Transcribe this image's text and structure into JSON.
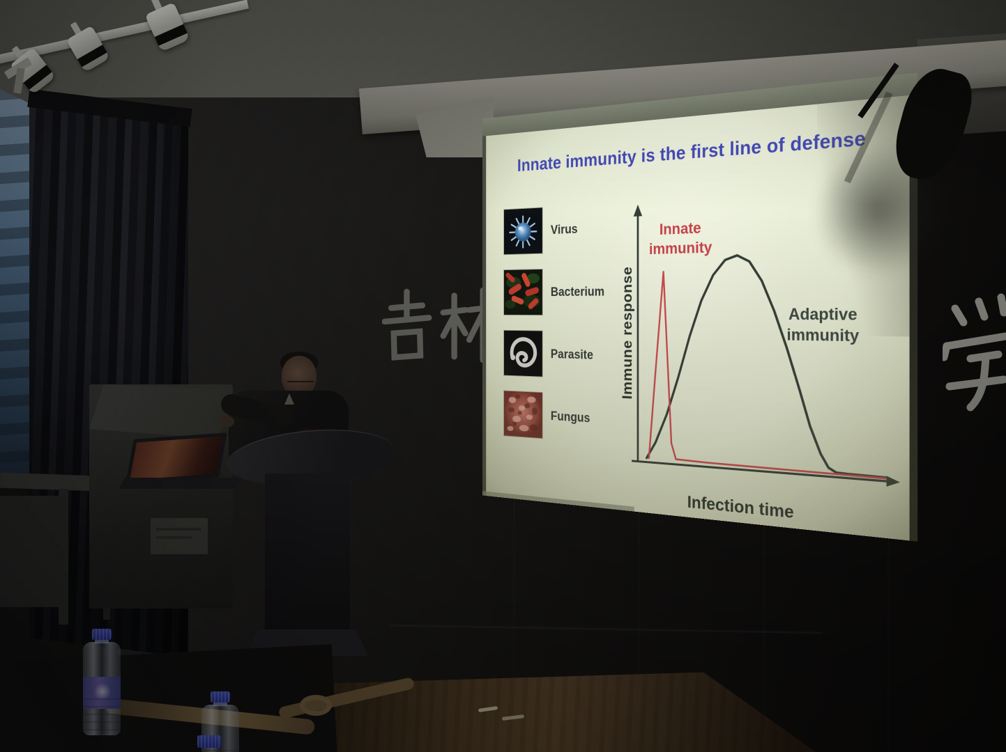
{
  "slide": {
    "title": "Innate immunity is the first line of defense",
    "pathogens": [
      {
        "label": "Virus"
      },
      {
        "label": "Bacterium"
      },
      {
        "label": "Parasite"
      },
      {
        "label": "Fungus"
      }
    ],
    "chart": {
      "y_axis_label": "Immune response",
      "x_axis_label": "Infection time",
      "innate_label": "Innate\nimmunity",
      "adaptive_label": "Adaptive\nimmunity"
    },
    "colors": {
      "title_blue": "#3f45b5",
      "innate_red": "#c9424b",
      "adaptive_dark": "#333d36",
      "slide_background": "#e9eed8"
    }
  },
  "wall_signage": {
    "characters": "吉林",
    "partial_character": "学"
  },
  "chart_data": {
    "type": "line",
    "title": "Innate immunity is the first line of defense",
    "xlabel": "Infection time",
    "ylabel": "Immune response",
    "x_range_normalized": [
      0,
      1
    ],
    "y_range_normalized": [
      0,
      1
    ],
    "grid": false,
    "legend_position": "inline-annotations",
    "series": [
      {
        "name": "Innate immunity",
        "color": "#cd4a50",
        "x": [
          0.05,
          0.08,
          0.115,
          0.15,
          0.17,
          0.3,
          0.6,
          1.0
        ],
        "y": [
          0.02,
          0.45,
          0.93,
          0.1,
          0.025,
          0.02,
          0.016,
          0.012
        ]
      },
      {
        "name": "Adaptive immunity",
        "color": "#333d36",
        "x": [
          0.04,
          0.08,
          0.13,
          0.18,
          0.23,
          0.28,
          0.33,
          0.38,
          0.43,
          0.48,
          0.53,
          0.58,
          0.63,
          0.68,
          0.72,
          0.76,
          0.79,
          0.82,
          0.86,
          1.0
        ],
        "y": [
          0.02,
          0.1,
          0.24,
          0.42,
          0.62,
          0.79,
          0.91,
          0.98,
          1.0,
          0.97,
          0.88,
          0.74,
          0.57,
          0.38,
          0.22,
          0.1,
          0.04,
          0.02,
          0.018,
          0.015
        ]
      }
    ]
  }
}
